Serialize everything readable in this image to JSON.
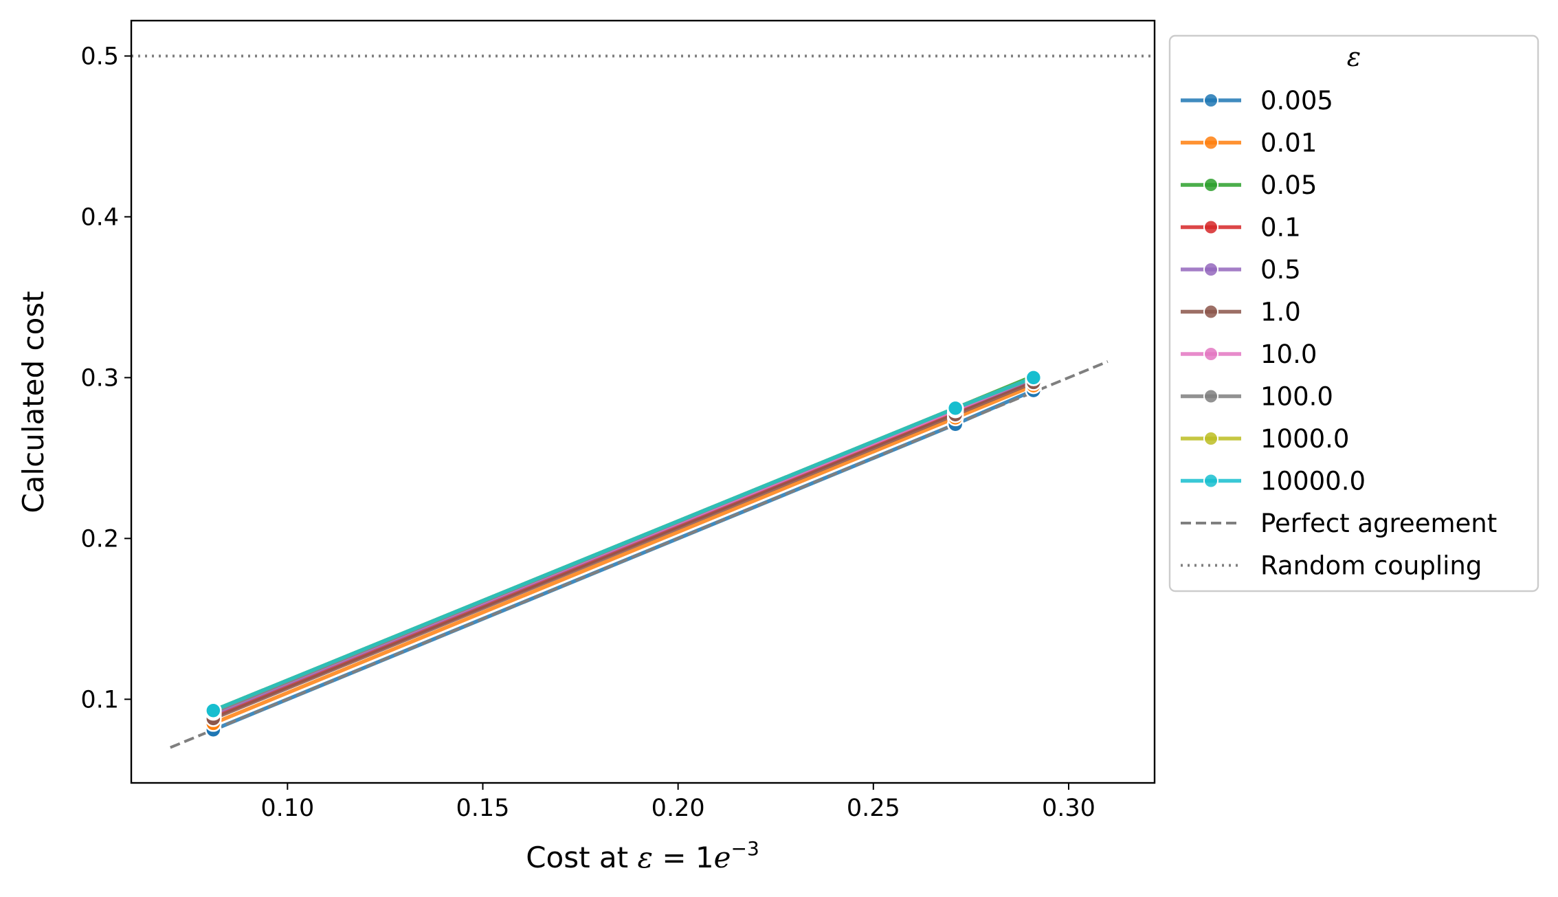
{
  "chart_data": {
    "type": "line",
    "xlabel": "Cost at ε = 1e⁻³",
    "xlabel_parts": {
      "prefix": "Cost at ",
      "symbol": "ε",
      "equals": " = 1",
      "base": "e",
      "exponent": "−3"
    },
    "ylabel": "Calculated cost",
    "xlim": [
      0.06,
      0.322
    ],
    "ylim": [
      0.048,
      0.522
    ],
    "xticks": [
      "0.10",
      "0.15",
      "0.20",
      "0.25",
      "0.30"
    ],
    "xtick_values": [
      0.1,
      0.15,
      0.2,
      0.25,
      0.3
    ],
    "yticks": [
      "0.1",
      "0.2",
      "0.3",
      "0.4",
      "0.5"
    ],
    "ytick_values": [
      0.1,
      0.2,
      0.3,
      0.4,
      0.5
    ],
    "grid": false,
    "legend_title": "ε",
    "legend_position": "outside-right",
    "x": [
      0.081,
      0.271,
      0.291
    ],
    "series": [
      {
        "name": "0.005",
        "color": "#1f77b4",
        "y": [
          0.081,
          0.271,
          0.292
        ]
      },
      {
        "name": "0.01",
        "color": "#ff7f0e",
        "y": [
          0.085,
          0.275,
          0.295
        ]
      },
      {
        "name": "0.05",
        "color": "#2ca02c",
        "y": [
          0.093,
          0.281,
          0.301
        ]
      },
      {
        "name": "0.1",
        "color": "#d62728",
        "y": [
          0.089,
          0.278,
          0.298
        ]
      },
      {
        "name": "0.5",
        "color": "#9467bd",
        "y": [
          0.091,
          0.28,
          0.299
        ]
      },
      {
        "name": "1.0",
        "color": "#8c564b",
        "y": [
          0.088,
          0.277,
          0.297
        ]
      },
      {
        "name": "10.0",
        "color": "#e377c2",
        "y": [
          0.092,
          0.28,
          0.3
        ]
      },
      {
        "name": "100.0",
        "color": "#7f7f7f",
        "y": [
          0.092,
          0.281,
          0.3
        ]
      },
      {
        "name": "1000.0",
        "color": "#bcbd22",
        "y": [
          0.093,
          0.281,
          0.3
        ]
      },
      {
        "name": "10000.0",
        "color": "#17becf",
        "y": [
          0.093,
          0.281,
          0.3
        ]
      }
    ],
    "reference_lines": [
      {
        "name": "Perfect agreement",
        "style": "dashed",
        "color": "#7f7f7f",
        "x": [
          0.07,
          0.31
        ],
        "y": [
          0.07,
          0.31
        ]
      },
      {
        "name": "Random coupling",
        "style": "dotted",
        "color": "#7f7f7f",
        "y_constant": 0.5
      }
    ]
  }
}
